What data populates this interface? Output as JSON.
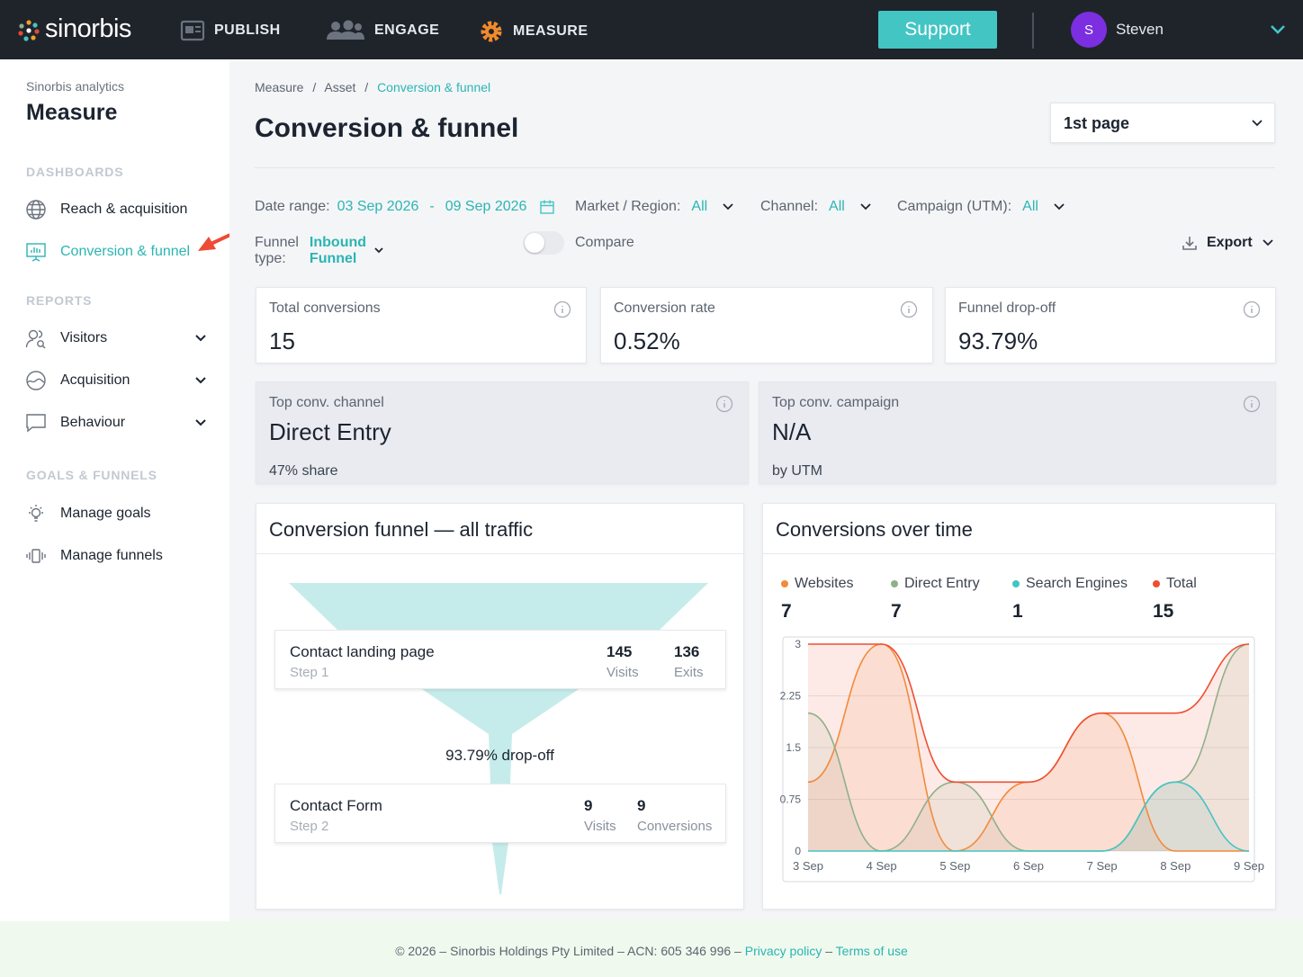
{
  "brand": {
    "name": "sinorbis"
  },
  "nav": {
    "publish": "PUBLISH",
    "engage": "ENGAGE",
    "measure": "MEASURE",
    "support": "Support",
    "avatar_initial": "S",
    "user": "Steven"
  },
  "sidebar": {
    "subtitle": "Sinorbis analytics",
    "title": "Measure",
    "dashboards_heading": "DASHBOARDS",
    "reports_heading": "REPORTS",
    "goals_heading": "GOALS & FUNNELS",
    "items": [
      {
        "label": "Reach & acquisition",
        "icon": "globe-icon"
      },
      {
        "label": "Conversion & funnel",
        "icon": "presentation-chart-icon",
        "active": true
      },
      {
        "label": "Visitors",
        "icon": "users-icon"
      },
      {
        "label": "Acquisition",
        "icon": "gauge-icon"
      },
      {
        "label": "Behaviour",
        "icon": "chat-icon"
      },
      {
        "label": "Manage goals",
        "icon": "lightbulb-icon"
      },
      {
        "label": "Manage funnels",
        "icon": "funnel-icon"
      }
    ]
  },
  "breadcrumb": {
    "items": [
      "Measure",
      "Asset",
      "Conversion & funnel"
    ],
    "sep": "/"
  },
  "page": {
    "title": "Conversion & funnel",
    "page_select": "1st page"
  },
  "filters": {
    "date_label": "Date range:",
    "date_from": "03 Sep 2026",
    "date_dash": "-",
    "date_to": "09 Sep 2026",
    "market_label": "Market / Region:",
    "market_value": "All",
    "channel_label": "Channel:",
    "channel_value": "All",
    "campaign_label": "Campaign (UTM):",
    "campaign_value": "All",
    "funnel_label": "Funnel type:",
    "funnel_value": "Inbound Funnel",
    "compare_label": "Compare",
    "export_label": "Export"
  },
  "kpis": [
    {
      "label": "Total conversions",
      "value": "15"
    },
    {
      "label": "Conversion rate",
      "value": "0.52%"
    },
    {
      "label": "Funnel drop-off",
      "value": "93.79%"
    }
  ],
  "tops": [
    {
      "label": "Top conv. channel",
      "value": "Direct Entry",
      "sub": "47% share"
    },
    {
      "label": "Top conv. campaign",
      "value": "N/A",
      "sub": "by UTM"
    }
  ],
  "funnel": {
    "title": "Conversion funnel — all traffic",
    "steps": [
      {
        "name": "Contact landing page",
        "step": "Step 1",
        "m1": "145",
        "m1_label": "Visits",
        "m2": "136",
        "m2_label": "Exits"
      },
      {
        "name": "Contact Form",
        "step": "Step 2",
        "m1": "9",
        "m1_label": "Visits",
        "m2": "9",
        "m2_label": "Conversions"
      }
    ],
    "dropoff": "93.79% drop-off"
  },
  "timechart": {
    "title": "Conversions over time",
    "legend": [
      {
        "name": "Websites",
        "value": "7",
        "color": "#f28a3c"
      },
      {
        "name": "Direct Entry",
        "value": "7",
        "color": "#8fb08a"
      },
      {
        "name": "Search Engines",
        "value": "1",
        "color": "#43c5c4"
      },
      {
        "name": "Total",
        "value": "15",
        "color": "#ee4f33"
      }
    ]
  },
  "chart_data": {
    "type": "line",
    "x": [
      "3 Sep",
      "4 Sep",
      "5 Sep",
      "6 Sep",
      "7 Sep",
      "8 Sep",
      "9 Sep"
    ],
    "ylim": [
      0,
      3
    ],
    "yticks": [
      "0",
      "0.75",
      "1.5",
      "2.25",
      "3"
    ],
    "series": [
      {
        "name": "Websites",
        "values": [
          1,
          3,
          0,
          1,
          2,
          0,
          0
        ],
        "color": "#f28a3c"
      },
      {
        "name": "Direct Entry",
        "values": [
          2,
          0,
          1,
          0,
          0,
          1,
          3
        ],
        "color": "#8fb08a"
      },
      {
        "name": "Search Engines",
        "values": [
          0,
          0,
          0,
          0,
          0,
          1,
          0
        ],
        "color": "#43c5c4"
      },
      {
        "name": "Total",
        "values": [
          3,
          3,
          1,
          1,
          2,
          2,
          3
        ],
        "color": "#ee4f33"
      }
    ],
    "grid": true
  },
  "footer": {
    "copyright": "© 2026 – Sinorbis Holdings Pty Limited – ACN: 605 346 996 –",
    "privacy": "Privacy policy",
    "dash": "–",
    "terms": "Terms of use"
  }
}
